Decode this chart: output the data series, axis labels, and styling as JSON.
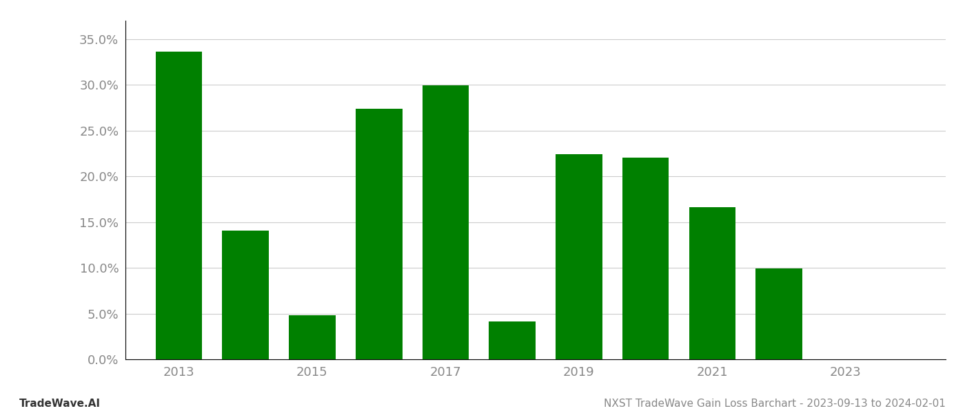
{
  "years": [
    2013,
    2014,
    2015,
    2016,
    2017,
    2018,
    2019,
    2020,
    2021,
    2022,
    2023
  ],
  "values": [
    0.336,
    0.141,
    0.048,
    0.274,
    0.299,
    0.041,
    0.224,
    0.22,
    0.166,
    0.099,
    0.0
  ],
  "bar_color": "#008000",
  "ylim": [
    0,
    0.37
  ],
  "yticks": [
    0.0,
    0.05,
    0.1,
    0.15,
    0.2,
    0.25,
    0.3,
    0.35
  ],
  "xticks": [
    2013,
    2015,
    2017,
    2019,
    2021,
    2023
  ],
  "title": "NXST TradeWave Gain Loss Barchart - 2023-09-13 to 2024-02-01",
  "footer_left": "TradeWave.AI",
  "grid_color": "#cccccc",
  "background_color": "#ffffff",
  "bar_width": 0.7,
  "xlim_left": 2012.2,
  "xlim_right": 2024.5
}
